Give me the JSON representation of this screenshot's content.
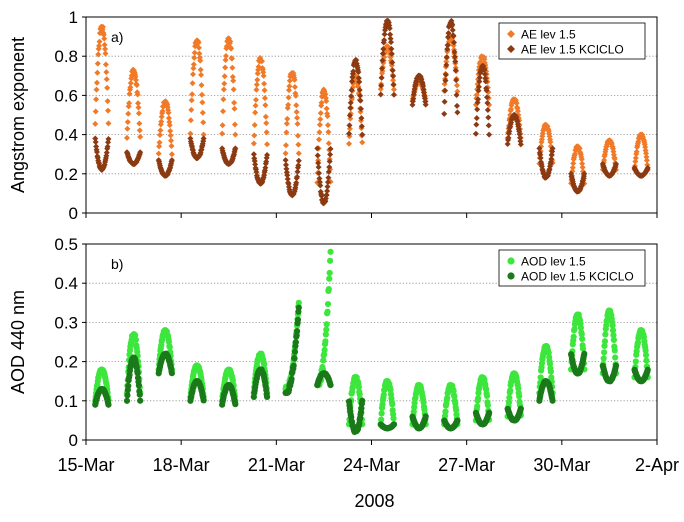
{
  "figure": {
    "xlabel": "2008",
    "x_ticks": [
      "15-Mar",
      "18-Mar",
      "21-Mar",
      "24-Mar",
      "27-Mar",
      "30-Mar",
      "2-Apr"
    ]
  },
  "chart_data": [
    {
      "type": "scatter",
      "panel_label": "a)",
      "ylabel": "Angstrom exponent",
      "xlim": [
        "15-Mar",
        "2-Apr"
      ],
      "ylim": [
        0,
        1
      ],
      "y_ticks": [
        "0",
        "0.2",
        "0.4",
        "0.6",
        "0.8",
        "1"
      ],
      "x_ticks": [
        "15-Mar",
        "18-Mar",
        "21-Mar",
        "24-Mar",
        "27-Mar",
        "30-Mar",
        "2-Apr"
      ],
      "grid": "horizontal",
      "legend_position": "top-right",
      "series": [
        {
          "name": "AE lev 1.5",
          "color": "#f07a28",
          "marker": "diamond",
          "days": [
            {
              "date": "15-Mar",
              "hours": [
                7,
                17
              ],
              "y": [
                0.45,
                0.95
              ],
              "shape": "cap"
            },
            {
              "date": "16-Mar",
              "hours": [
                7,
                17
              ],
              "y": [
                0.38,
                0.73
              ],
              "shape": "cap"
            },
            {
              "date": "17-Mar",
              "hours": [
                7,
                17
              ],
              "y": [
                0.3,
                0.57
              ],
              "shape": "cap"
            },
            {
              "date": "18-Mar",
              "hours": [
                7,
                17
              ],
              "y": [
                0.4,
                0.88
              ],
              "shape": "cap"
            },
            {
              "date": "19-Mar",
              "hours": [
                7,
                17
              ],
              "y": [
                0.4,
                0.89
              ],
              "shape": "cap"
            },
            {
              "date": "20-Mar",
              "hours": [
                7,
                17
              ],
              "y": [
                0.35,
                0.79
              ],
              "shape": "cap"
            },
            {
              "date": "21-Mar",
              "hours": [
                7,
                17
              ],
              "y": [
                0.3,
                0.72
              ],
              "shape": "cap"
            },
            {
              "date": "22-Mar",
              "hours": [
                7,
                17
              ],
              "y": [
                0.15,
                0.63
              ],
              "shape": "cap"
            },
            {
              "date": "23-Mar",
              "hours": [
                7,
                17
              ],
              "y": [
                0.35,
                0.7
              ],
              "shape": "cap"
            },
            {
              "date": "24-Mar",
              "hours": [
                7,
                17
              ],
              "y": [
                0.63,
                0.85
              ],
              "shape": "cap"
            },
            {
              "date": "25-Mar",
              "hours": [
                7,
                17
              ],
              "y": [
                0.57,
                0.67
              ],
              "shape": "cap"
            },
            {
              "date": "26-Mar",
              "hours": [
                7,
                17
              ],
              "y": [
                0.62,
                0.9
              ],
              "shape": "cap"
            },
            {
              "date": "27-Mar",
              "hours": [
                7,
                17
              ],
              "y": [
                0.55,
                0.8
              ],
              "shape": "cap"
            },
            {
              "date": "28-Mar",
              "hours": [
                7,
                17
              ],
              "y": [
                0.38,
                0.58
              ],
              "shape": "cap"
            },
            {
              "date": "29-Mar",
              "hours": [
                7,
                17
              ],
              "y": [
                0.25,
                0.45
              ],
              "shape": "cap"
            },
            {
              "date": "30-Mar",
              "hours": [
                7,
                17
              ],
              "y": [
                0.15,
                0.34
              ],
              "shape": "cap"
            },
            {
              "date": "31-Mar",
              "hours": [
                7,
                17
              ],
              "y": [
                0.22,
                0.37
              ],
              "shape": "cap"
            },
            {
              "date": "1-Apr",
              "hours": [
                7,
                17
              ],
              "y": [
                0.22,
                0.4
              ],
              "shape": "cap"
            }
          ]
        },
        {
          "name": "AE lev 1.5 KCICLO",
          "color": "#8b3a12",
          "marker": "diamond",
          "days": [
            {
              "date": "15-Mar",
              "hours": [
                7,
                17
              ],
              "y": [
                0.22,
                0.38
              ],
              "shape": "cup"
            },
            {
              "date": "16-Mar",
              "hours": [
                7,
                17
              ],
              "y": [
                0.25,
                0.31
              ],
              "shape": "cup"
            },
            {
              "date": "17-Mar",
              "hours": [
                7,
                17
              ],
              "y": [
                0.19,
                0.27
              ],
              "shape": "cup"
            },
            {
              "date": "18-Mar",
              "hours": [
                7,
                17
              ],
              "y": [
                0.28,
                0.38
              ],
              "shape": "cup"
            },
            {
              "date": "19-Mar",
              "hours": [
                7,
                17
              ],
              "y": [
                0.25,
                0.33
              ],
              "shape": "cup"
            },
            {
              "date": "20-Mar",
              "hours": [
                7,
                17
              ],
              "y": [
                0.15,
                0.3
              ],
              "shape": "cup"
            },
            {
              "date": "21-Mar",
              "hours": [
                7,
                17
              ],
              "y": [
                0.09,
                0.27
              ],
              "shape": "cup"
            },
            {
              "date": "22-Mar",
              "hours": [
                7,
                17
              ],
              "y": [
                0.05,
                0.33
              ],
              "shape": "cup"
            },
            {
              "date": "23-Mar",
              "hours": [
                7,
                17
              ],
              "y": [
                0.4,
                0.78
              ],
              "shape": "cap"
            },
            {
              "date": "24-Mar",
              "hours": [
                7,
                17
              ],
              "y": [
                0.6,
                0.98
              ],
              "shape": "cap"
            },
            {
              "date": "25-Mar",
              "hours": [
                7,
                17
              ],
              "y": [
                0.55,
                0.7
              ],
              "shape": "cap"
            },
            {
              "date": "26-Mar",
              "hours": [
                7,
                17
              ],
              "y": [
                0.5,
                0.98
              ],
              "shape": "cap"
            },
            {
              "date": "27-Mar",
              "hours": [
                7,
                17
              ],
              "y": [
                0.4,
                0.75
              ],
              "shape": "cap"
            },
            {
              "date": "28-Mar",
              "hours": [
                7,
                17
              ],
              "y": [
                0.35,
                0.5
              ],
              "shape": "cap"
            },
            {
              "date": "29-Mar",
              "hours": [
                7,
                17
              ],
              "y": [
                0.18,
                0.33
              ],
              "shape": "cup"
            },
            {
              "date": "30-Mar",
              "hours": [
                7,
                17
              ],
              "y": [
                0.11,
                0.2
              ],
              "shape": "cup"
            },
            {
              "date": "31-Mar",
              "hours": [
                7,
                17
              ],
              "y": [
                0.19,
                0.25
              ],
              "shape": "cup"
            },
            {
              "date": "1-Apr",
              "hours": [
                7,
                17
              ],
              "y": [
                0.19,
                0.23
              ],
              "shape": "cup"
            }
          ]
        }
      ]
    },
    {
      "type": "scatter",
      "panel_label": "b)",
      "ylabel": "AOD 440 nm",
      "xlim": [
        "15-Mar",
        "2-Apr"
      ],
      "ylim": [
        0,
        0.5
      ],
      "y_ticks": [
        "0",
        "0.1",
        "0.2",
        "0.3",
        "0.4",
        "0.5"
      ],
      "x_ticks": [
        "15-Mar",
        "18-Mar",
        "21-Mar",
        "24-Mar",
        "27-Mar",
        "30-Mar",
        "2-Apr"
      ],
      "grid": "horizontal",
      "legend_position": "top-right",
      "series": [
        {
          "name": "AOD lev 1.5",
          "color": "#3de63d",
          "marker": "circle",
          "days": [
            {
              "date": "15-Mar",
              "hours": [
                7,
                17
              ],
              "y": [
                0.1,
                0.18
              ],
              "shape": "cap"
            },
            {
              "date": "16-Mar",
              "hours": [
                7,
                17
              ],
              "y": [
                0.12,
                0.27
              ],
              "shape": "cap"
            },
            {
              "date": "17-Mar",
              "hours": [
                7,
                17
              ],
              "y": [
                0.18,
                0.28
              ],
              "shape": "cap"
            },
            {
              "date": "18-Mar",
              "hours": [
                7,
                17
              ],
              "y": [
                0.11,
                0.19
              ],
              "shape": "cap"
            },
            {
              "date": "19-Mar",
              "hours": [
                7,
                17
              ],
              "y": [
                0.1,
                0.18
              ],
              "shape": "cap"
            },
            {
              "date": "20-Mar",
              "hours": [
                7,
                17
              ],
              "y": [
                0.12,
                0.22
              ],
              "shape": "cap"
            },
            {
              "date": "21-Mar",
              "hours": [
                7,
                17
              ],
              "y": [
                0.13,
                0.35
              ],
              "shape": "rise"
            },
            {
              "date": "22-Mar",
              "hours": [
                7,
                17
              ],
              "y": [
                0.14,
                0.48
              ],
              "shape": "rise"
            },
            {
              "date": "23-Mar",
              "hours": [
                7,
                17
              ],
              "y": [
                0.04,
                0.16
              ],
              "shape": "cap"
            },
            {
              "date": "24-Mar",
              "hours": [
                7,
                17
              ],
              "y": [
                0.04,
                0.15
              ],
              "shape": "cap"
            },
            {
              "date": "25-Mar",
              "hours": [
                7,
                17
              ],
              "y": [
                0.04,
                0.14
              ],
              "shape": "cap"
            },
            {
              "date": "26-Mar",
              "hours": [
                7,
                17
              ],
              "y": [
                0.04,
                0.14
              ],
              "shape": "cap"
            },
            {
              "date": "27-Mar",
              "hours": [
                7,
                17
              ],
              "y": [
                0.05,
                0.16
              ],
              "shape": "cap"
            },
            {
              "date": "28-Mar",
              "hours": [
                7,
                17
              ],
              "y": [
                0.06,
                0.17
              ],
              "shape": "cap"
            },
            {
              "date": "29-Mar",
              "hours": [
                7,
                17
              ],
              "y": [
                0.12,
                0.24
              ],
              "shape": "cap"
            },
            {
              "date": "30-Mar",
              "hours": [
                7,
                17
              ],
              "y": [
                0.18,
                0.32
              ],
              "shape": "cap"
            },
            {
              "date": "31-Mar",
              "hours": [
                7,
                17
              ],
              "y": [
                0.17,
                0.33
              ],
              "shape": "cap"
            },
            {
              "date": "1-Apr",
              "hours": [
                7,
                17
              ],
              "y": [
                0.16,
                0.28
              ],
              "shape": "cap"
            }
          ]
        },
        {
          "name": "AOD lev 1.5 KCICLO",
          "color": "#1a7a1a",
          "marker": "circle",
          "days": [
            {
              "date": "15-Mar",
              "hours": [
                7,
                17
              ],
              "y": [
                0.09,
                0.13
              ],
              "shape": "cap"
            },
            {
              "date": "16-Mar",
              "hours": [
                7,
                17
              ],
              "y": [
                0.1,
                0.21
              ],
              "shape": "cap"
            },
            {
              "date": "17-Mar",
              "hours": [
                7,
                17
              ],
              "y": [
                0.17,
                0.22
              ],
              "shape": "cap"
            },
            {
              "date": "18-Mar",
              "hours": [
                7,
                17
              ],
              "y": [
                0.1,
                0.15
              ],
              "shape": "cap"
            },
            {
              "date": "19-Mar",
              "hours": [
                7,
                17
              ],
              "y": [
                0.09,
                0.14
              ],
              "shape": "cap"
            },
            {
              "date": "20-Mar",
              "hours": [
                7,
                17
              ],
              "y": [
                0.11,
                0.18
              ],
              "shape": "cap"
            },
            {
              "date": "21-Mar",
              "hours": [
                7,
                17
              ],
              "y": [
                0.12,
                0.34
              ],
              "shape": "rise"
            },
            {
              "date": "22-Mar",
              "hours": [
                7,
                17
              ],
              "y": [
                0.14,
                0.17
              ],
              "shape": "cap"
            },
            {
              "date": "23-Mar",
              "hours": [
                7,
                17
              ],
              "y": [
                0.02,
                0.1
              ],
              "shape": "cup"
            },
            {
              "date": "24-Mar",
              "hours": [
                7,
                17
              ],
              "y": [
                0.03,
                0.04
              ],
              "shape": "cup"
            },
            {
              "date": "25-Mar",
              "hours": [
                7,
                17
              ],
              "y": [
                0.03,
                0.06
              ],
              "shape": "cup"
            },
            {
              "date": "26-Mar",
              "hours": [
                7,
                17
              ],
              "y": [
                0.03,
                0.05
              ],
              "shape": "cup"
            },
            {
              "date": "27-Mar",
              "hours": [
                7,
                17
              ],
              "y": [
                0.04,
                0.07
              ],
              "shape": "cup"
            },
            {
              "date": "28-Mar",
              "hours": [
                7,
                17
              ],
              "y": [
                0.05,
                0.08
              ],
              "shape": "cup"
            },
            {
              "date": "29-Mar",
              "hours": [
                7,
                17
              ],
              "y": [
                0.1,
                0.15
              ],
              "shape": "cap"
            },
            {
              "date": "30-Mar",
              "hours": [
                7,
                17
              ],
              "y": [
                0.17,
                0.22
              ],
              "shape": "cup"
            },
            {
              "date": "31-Mar",
              "hours": [
                7,
                17
              ],
              "y": [
                0.15,
                0.19
              ],
              "shape": "cup"
            },
            {
              "date": "1-Apr",
              "hours": [
                7,
                17
              ],
              "y": [
                0.15,
                0.18
              ],
              "shape": "cup"
            }
          ]
        }
      ]
    }
  ]
}
